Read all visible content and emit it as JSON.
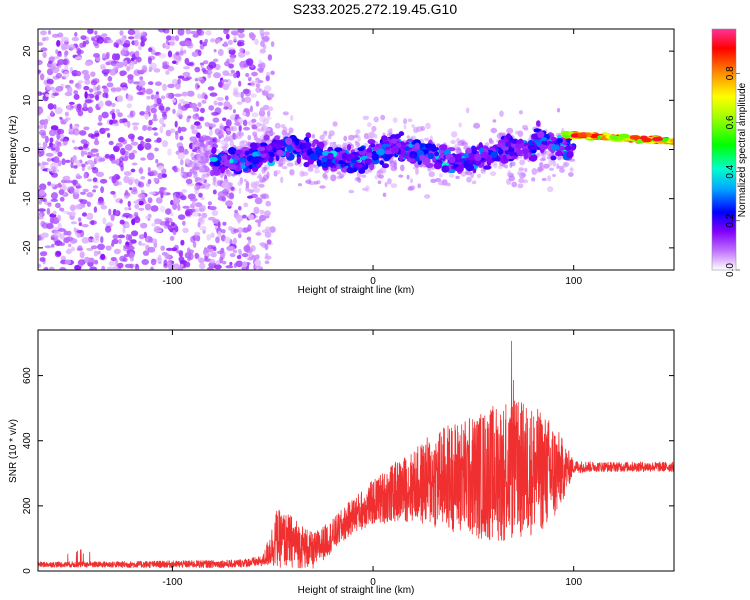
{
  "title": "S233.2025.272.19.45.G10",
  "colors": {
    "snr_line": "#f03030",
    "colormap": [
      "#ffffff",
      "#9900cc",
      "#0000ff",
      "#00cccc",
      "#00dd00",
      "#ffff00",
      "#ff8800",
      "#ff0000",
      "#ff44aa"
    ]
  },
  "chart_data": [
    {
      "type": "heatmap",
      "title": "S233.2025.272.19.45.G10",
      "xlabel": "Height of straight line (km)",
      "ylabel": "Frequency (Hz)",
      "xlim": [
        -167,
        150
      ],
      "ylim": [
        -24.5,
        24.5
      ],
      "x_ticks": [
        -100,
        0,
        100
      ],
      "y_ticks": [
        -20,
        -10,
        0,
        10,
        20
      ],
      "colorbar": {
        "label": "Normalized spectral amplitude",
        "range": [
          0,
          0.98
        ],
        "ticks": [
          "0.0",
          "0.2",
          "0.4",
          "0.6",
          "0.8"
        ]
      },
      "description_of_signal": [
        {
          "x_range": [
            -167,
            -55
          ],
          "freq_range": [
            -24,
            24
          ],
          "amplitude": "low, scattered noise"
        },
        {
          "x_range": [
            -80,
            100
          ],
          "freq_center": -1,
          "freq_spread": 3,
          "amplitude": "0.1-0.4 with wander"
        },
        {
          "x_range": [
            100,
            150
          ],
          "freq_center": 2.5,
          "freq_spread": 1,
          "amplitude": "0.6-0.95 strong tone"
        }
      ]
    },
    {
      "type": "line",
      "xlabel": "Height of straight line (km)",
      "ylabel": "SNR (10 * v/v)",
      "xlim": [
        -167,
        150
      ],
      "ylim": [
        0,
        740
      ],
      "x_ticks": [
        -100,
        0,
        100
      ],
      "y_ticks": [
        0,
        200,
        400,
        600
      ],
      "envelope": {
        "x": [
          -167,
          -120,
          -70,
          -55,
          -48,
          -40,
          -30,
          -20,
          -10,
          0,
          10,
          20,
          30,
          40,
          50,
          60,
          70,
          80,
          90,
          100,
          110,
          120,
          130,
          140,
          150
        ],
        "mean": [
          20,
          20,
          22,
          30,
          100,
          90,
          60,
          110,
          170,
          210,
          240,
          260,
          280,
          290,
          290,
          300,
          310,
          310,
          300,
          320,
          320,
          320,
          320,
          320,
          320
        ],
        "spread": [
          8,
          10,
          12,
          15,
          90,
          80,
          55,
          50,
          55,
          70,
          90,
          110,
          150,
          170,
          190,
          210,
          220,
          200,
          160,
          20,
          15,
          15,
          15,
          15,
          15
        ]
      }
    }
  ]
}
